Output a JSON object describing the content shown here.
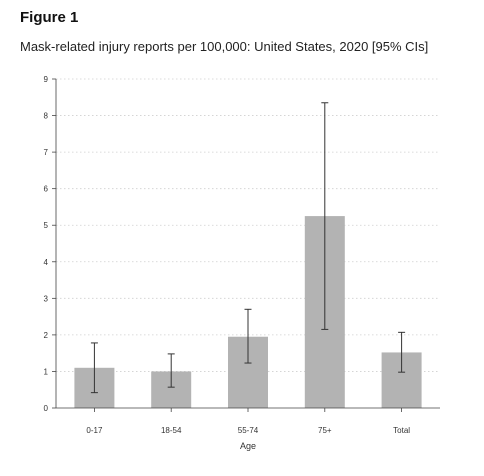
{
  "figure_label": "Figure 1",
  "chart_data": {
    "type": "bar",
    "title": "Mask-related injury reports per 100,000: United States, 2020 [95% CIs]",
    "xlabel": "Age",
    "ylabel": "",
    "categories": [
      "0-17",
      "18-54",
      "55-74",
      "75+",
      "Total"
    ],
    "values": [
      1.1,
      1.0,
      1.95,
      5.25,
      1.52
    ],
    "ci_lower": [
      0.42,
      0.57,
      1.23,
      2.15,
      0.98
    ],
    "ci_upper": [
      1.78,
      1.48,
      2.7,
      8.35,
      2.07
    ],
    "ylim": [
      0,
      9
    ],
    "yticks": [
      0,
      1,
      2,
      3,
      4,
      5,
      6,
      7,
      8,
      9
    ],
    "grid": true,
    "colors": {
      "bar": "#b3b3b3",
      "grid": "#cfcfcf",
      "axis": "#444444",
      "errorbar": "#333333"
    }
  }
}
